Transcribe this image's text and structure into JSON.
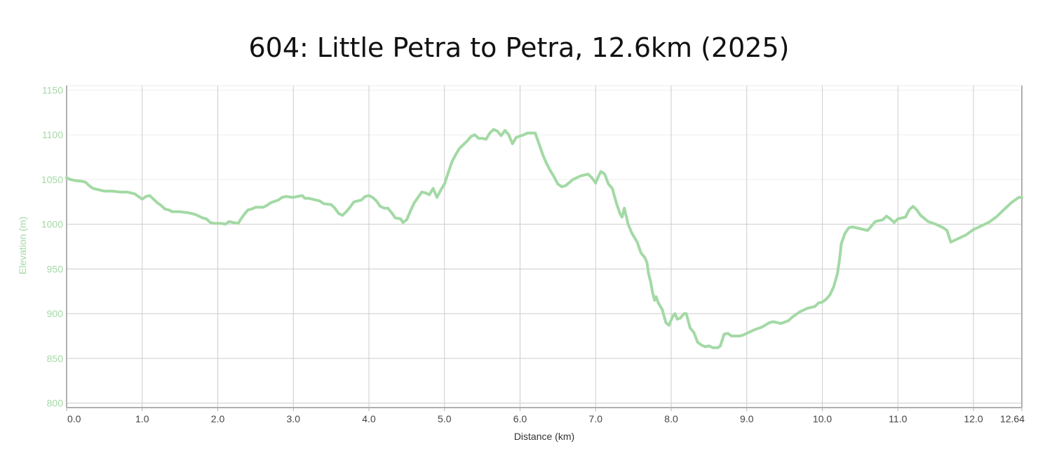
{
  "chart_data": {
    "type": "line",
    "title": "604: Little Petra to Petra, 12.6km (2025)",
    "xlabel": "Distance (km)",
    "ylabel": "Elevation (m)",
    "xlim": [
      0,
      12.64
    ],
    "ylim": [
      795,
      1155
    ],
    "x_ticks": [
      0,
      1,
      2,
      3,
      4,
      5,
      6,
      7,
      8,
      9,
      10,
      11,
      12,
      12.64
    ],
    "x_tick_labels": [
      "0.0",
      "1.0",
      "2.0",
      "3.0",
      "4.0",
      "5.0",
      "6.0",
      "7.0",
      "8.0",
      "9.0",
      "10.0",
      "11.0",
      "12.0",
      "12.64"
    ],
    "y_ticks": [
      800,
      850,
      900,
      950,
      1000,
      1050,
      1100,
      1150
    ],
    "y_tick_labels": [
      "800",
      "850",
      "900",
      "950",
      "1000",
      "1050",
      "1100",
      "1150"
    ],
    "grid": true,
    "colors": {
      "line": "#a3d9a5",
      "axis_text": "#a3d9a5",
      "grid": "#cccccc",
      "axis": "#b0b0b0"
    },
    "series": [
      {
        "name": "",
        "points": [
          [
            0.0,
            1052
          ],
          [
            0.05,
            1050
          ],
          [
            0.1,
            1049
          ],
          [
            0.2,
            1048
          ],
          [
            0.25,
            1047
          ],
          [
            0.3,
            1043
          ],
          [
            0.35,
            1040
          ],
          [
            0.45,
            1038
          ],
          [
            0.5,
            1037
          ],
          [
            0.6,
            1037
          ],
          [
            0.7,
            1036
          ],
          [
            0.8,
            1036
          ],
          [
            0.9,
            1034
          ],
          [
            0.95,
            1031
          ],
          [
            1.0,
            1028
          ],
          [
            1.05,
            1031
          ],
          [
            1.1,
            1032
          ],
          [
            1.15,
            1028
          ],
          [
            1.2,
            1024
          ],
          [
            1.25,
            1021
          ],
          [
            1.3,
            1017
          ],
          [
            1.35,
            1016
          ],
          [
            1.4,
            1014
          ],
          [
            1.5,
            1014
          ],
          [
            1.6,
            1013
          ],
          [
            1.7,
            1011
          ],
          [
            1.8,
            1007
          ],
          [
            1.85,
            1006
          ],
          [
            1.9,
            1002
          ],
          [
            1.95,
            1001
          ],
          [
            2.0,
            1001
          ],
          [
            2.05,
            1001
          ],
          [
            2.1,
            1000
          ],
          [
            2.15,
            1003
          ],
          [
            2.2,
            1002
          ],
          [
            2.27,
            1001
          ],
          [
            2.3,
            1005
          ],
          [
            2.35,
            1011
          ],
          [
            2.4,
            1016
          ],
          [
            2.45,
            1017
          ],
          [
            2.5,
            1019
          ],
          [
            2.6,
            1019
          ],
          [
            2.65,
            1021
          ],
          [
            2.7,
            1024
          ],
          [
            2.8,
            1027
          ],
          [
            2.85,
            1030
          ],
          [
            2.9,
            1031
          ],
          [
            3.0,
            1030
          ],
          [
            3.05,
            1031
          ],
          [
            3.12,
            1032
          ],
          [
            3.15,
            1029
          ],
          [
            3.2,
            1029
          ],
          [
            3.3,
            1027
          ],
          [
            3.35,
            1026
          ],
          [
            3.4,
            1023
          ],
          [
            3.5,
            1022
          ],
          [
            3.55,
            1018
          ],
          [
            3.6,
            1012
          ],
          [
            3.65,
            1010
          ],
          [
            3.7,
            1014
          ],
          [
            3.75,
            1019
          ],
          [
            3.8,
            1025
          ],
          [
            3.9,
            1027
          ],
          [
            3.95,
            1031
          ],
          [
            4.0,
            1032
          ],
          [
            4.05,
            1030
          ],
          [
            4.1,
            1026
          ],
          [
            4.15,
            1020
          ],
          [
            4.2,
            1018
          ],
          [
            4.25,
            1018
          ],
          [
            4.3,
            1013
          ],
          [
            4.35,
            1007
          ],
          [
            4.42,
            1006
          ],
          [
            4.45,
            1002
          ],
          [
            4.5,
            1005
          ],
          [
            4.55,
            1015
          ],
          [
            4.6,
            1024
          ],
          [
            4.65,
            1030
          ],
          [
            4.7,
            1036
          ],
          [
            4.75,
            1035
          ],
          [
            4.8,
            1033
          ],
          [
            4.85,
            1040
          ],
          [
            4.9,
            1030
          ],
          [
            4.95,
            1038
          ],
          [
            5.0,
            1045
          ],
          [
            5.05,
            1058
          ],
          [
            5.1,
            1070
          ],
          [
            5.15,
            1078
          ],
          [
            5.2,
            1085
          ],
          [
            5.25,
            1089
          ],
          [
            5.3,
            1093
          ],
          [
            5.35,
            1098
          ],
          [
            5.4,
            1100
          ],
          [
            5.45,
            1096
          ],
          [
            5.5,
            1096
          ],
          [
            5.55,
            1095
          ],
          [
            5.6,
            1102
          ],
          [
            5.65,
            1106
          ],
          [
            5.7,
            1104
          ],
          [
            5.75,
            1099
          ],
          [
            5.8,
            1105
          ],
          [
            5.85,
            1100
          ],
          [
            5.9,
            1090
          ],
          [
            5.95,
            1097
          ],
          [
            6.05,
            1100
          ],
          [
            6.1,
            1102
          ],
          [
            6.2,
            1102
          ],
          [
            6.25,
            1090
          ],
          [
            6.3,
            1078
          ],
          [
            6.35,
            1068
          ],
          [
            6.4,
            1060
          ],
          [
            6.45,
            1053
          ],
          [
            6.5,
            1045
          ],
          [
            6.55,
            1042
          ],
          [
            6.6,
            1043
          ],
          [
            6.7,
            1050
          ],
          [
            6.8,
            1054
          ],
          [
            6.9,
            1056
          ],
          [
            6.95,
            1052
          ],
          [
            7.0,
            1046
          ],
          [
            7.03,
            1052
          ],
          [
            7.07,
            1059
          ],
          [
            7.12,
            1056
          ],
          [
            7.17,
            1045
          ],
          [
            7.22,
            1040
          ],
          [
            7.27,
            1025
          ],
          [
            7.32,
            1012
          ],
          [
            7.35,
            1008
          ],
          [
            7.38,
            1018
          ],
          [
            7.43,
            1000
          ],
          [
            7.48,
            990
          ],
          [
            7.55,
            980
          ],
          [
            7.6,
            968
          ],
          [
            7.65,
            963
          ],
          [
            7.68,
            957
          ],
          [
            7.7,
            945
          ],
          [
            7.73,
            935
          ],
          [
            7.75,
            925
          ],
          [
            7.78,
            915
          ],
          [
            7.8,
            919
          ],
          [
            7.83,
            912
          ],
          [
            7.88,
            905
          ],
          [
            7.93,
            890
          ],
          [
            7.97,
            887
          ],
          [
            8.02,
            897
          ],
          [
            8.05,
            900
          ],
          [
            8.08,
            894
          ],
          [
            8.12,
            895
          ],
          [
            8.17,
            900
          ],
          [
            8.2,
            900
          ],
          [
            8.25,
            884
          ],
          [
            8.3,
            879
          ],
          [
            8.35,
            868
          ],
          [
            8.4,
            865
          ],
          [
            8.45,
            863
          ],
          [
            8.5,
            864
          ],
          [
            8.55,
            862
          ],
          [
            8.62,
            862
          ],
          [
            8.65,
            864
          ],
          [
            8.7,
            877
          ],
          [
            8.75,
            878
          ],
          [
            8.8,
            875
          ],
          [
            8.9,
            875
          ],
          [
            8.95,
            876
          ],
          [
            9.0,
            878
          ],
          [
            9.1,
            882
          ],
          [
            9.2,
            885
          ],
          [
            9.3,
            890
          ],
          [
            9.35,
            891
          ],
          [
            9.45,
            889
          ],
          [
            9.55,
            892
          ],
          [
            9.6,
            896
          ],
          [
            9.7,
            902
          ],
          [
            9.8,
            906
          ],
          [
            9.9,
            908
          ],
          [
            9.95,
            912
          ],
          [
            10.0,
            913
          ],
          [
            10.05,
            916
          ],
          [
            10.1,
            921
          ],
          [
            10.15,
            930
          ],
          [
            10.2,
            945
          ],
          [
            10.23,
            962
          ],
          [
            10.25,
            978
          ],
          [
            10.3,
            990
          ],
          [
            10.35,
            996
          ],
          [
            10.4,
            997
          ],
          [
            10.5,
            995
          ],
          [
            10.6,
            993
          ],
          [
            10.7,
            1003
          ],
          [
            10.8,
            1005
          ],
          [
            10.85,
            1009
          ],
          [
            10.9,
            1006
          ],
          [
            10.95,
            1002
          ],
          [
            11.0,
            1006
          ],
          [
            11.1,
            1008
          ],
          [
            11.15,
            1016
          ],
          [
            11.2,
            1020
          ],
          [
            11.25,
            1016
          ],
          [
            11.3,
            1010
          ],
          [
            11.4,
            1003
          ],
          [
            11.5,
            1000
          ],
          [
            11.6,
            996
          ],
          [
            11.65,
            993
          ],
          [
            11.7,
            980
          ],
          [
            11.8,
            984
          ],
          [
            11.9,
            988
          ],
          [
            12.0,
            994
          ],
          [
            12.1,
            998
          ],
          [
            12.2,
            1002
          ],
          [
            12.3,
            1008
          ],
          [
            12.4,
            1016
          ],
          [
            12.5,
            1024
          ],
          [
            12.6,
            1030
          ],
          [
            12.64,
            1030
          ]
        ]
      }
    ]
  }
}
